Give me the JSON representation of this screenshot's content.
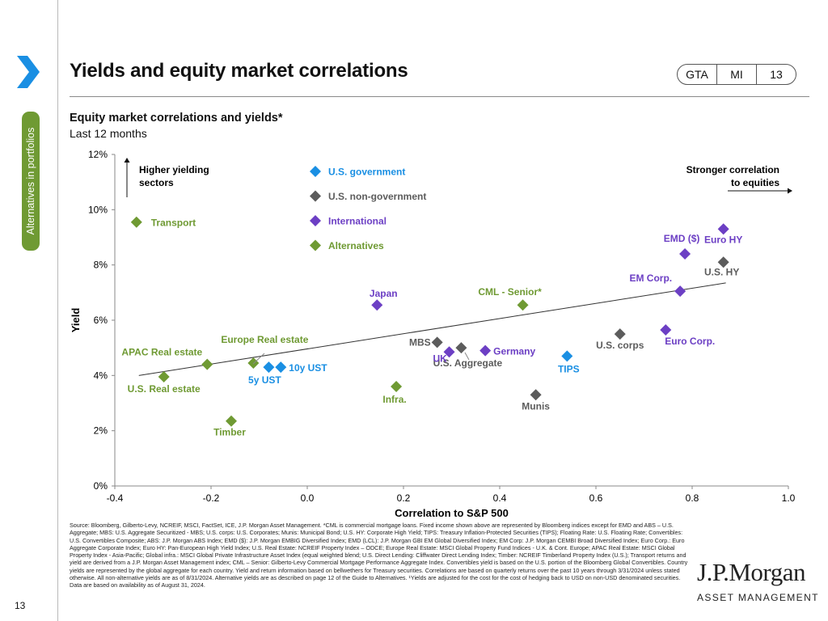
{
  "header": {
    "title": "Yields and equity market correlations",
    "tags": [
      "GTA",
      "MI",
      "13"
    ]
  },
  "sidebar": {
    "section_label": "Alternatives in portfolios",
    "page_number": "13"
  },
  "colors": {
    "accent_green": "#6f9a33",
    "chevron_blue": "#1a8fe3",
    "us_government": "#1a8fe3",
    "us_non_government": "#5c5c5c",
    "international": "#6c3fc4",
    "alternatives": "#6f9a33"
  },
  "chart_data": {
    "type": "scatter",
    "title": "Equity market correlations and yields*",
    "subtitle": "Last 12 months",
    "xlabel": "Correlation to S&P 500",
    "ylabel": "Yield",
    "xlim": [
      -0.4,
      1.0
    ],
    "ylim": [
      0,
      12
    ],
    "x_ticks": [
      "-0.4",
      "-0.2",
      "0.0",
      "0.2",
      "0.4",
      "0.6",
      "0.8",
      "1.0"
    ],
    "y_ticks": [
      "0%",
      "2%",
      "4%",
      "6%",
      "8%",
      "10%",
      "12%"
    ],
    "grid": false,
    "legend_position": "top-left",
    "annotations": {
      "higher_yielding": "Higher yielding sectors",
      "stronger_correlation": "Stronger correlation to equities"
    },
    "trendline": {
      "x": [
        -0.35,
        0.87
      ],
      "y": [
        4.0,
        7.35
      ]
    },
    "series": [
      {
        "name": "U.S. government",
        "color": "#1a8fe3",
        "points": [
          {
            "label": "5y UST",
            "x": -0.08,
            "y": 4.3
          },
          {
            "label": "10y UST",
            "x": -0.055,
            "y": 4.3
          },
          {
            "label": "TIPS",
            "x": 0.54,
            "y": 4.7
          }
        ]
      },
      {
        "name": "U.S. non-government",
        "color": "#5c5c5c",
        "points": [
          {
            "label": "MBS",
            "x": 0.27,
            "y": 5.2
          },
          {
            "label": "U.S. Aggregate",
            "x": 0.32,
            "y": 5.0
          },
          {
            "label": "Munis",
            "x": 0.475,
            "y": 3.3
          },
          {
            "label": "U.S. corps",
            "x": 0.65,
            "y": 5.5
          },
          {
            "label": "U.S. HY",
            "x": 0.865,
            "y": 8.1
          }
        ]
      },
      {
        "name": "International",
        "color": "#6c3fc4",
        "points": [
          {
            "label": "Japan",
            "x": 0.145,
            "y": 6.55
          },
          {
            "label": "UK",
            "x": 0.295,
            "y": 4.85
          },
          {
            "label": "Germany",
            "x": 0.37,
            "y": 4.9
          },
          {
            "label": "Euro Corp.",
            "x": 0.745,
            "y": 5.65
          },
          {
            "label": "EM Corp.",
            "x": 0.775,
            "y": 7.05
          },
          {
            "label": "EMD ($)",
            "x": 0.785,
            "y": 8.4
          },
          {
            "label": "Euro HY",
            "x": 0.865,
            "y": 9.3
          }
        ]
      },
      {
        "name": "Alternatives",
        "color": "#6f9a33",
        "points": [
          {
            "label": "Transport",
            "x": -0.355,
            "y": 9.55
          },
          {
            "label": "U.S. Real estate",
            "x": -0.298,
            "y": 3.95
          },
          {
            "label": "APAC Real estate",
            "x": -0.208,
            "y": 4.4
          },
          {
            "label": "Europe Real estate",
            "x": -0.112,
            "y": 4.45
          },
          {
            "label": "Timber",
            "x": -0.158,
            "y": 2.35
          },
          {
            "label": "Infra.",
            "x": 0.185,
            "y": 3.6
          },
          {
            "label": "CML - Senior*",
            "x": 0.448,
            "y": 6.55
          }
        ]
      }
    ]
  },
  "footnote": {
    "lines": [
      "Source: Bloomberg, Gilberto-Levy, NCREIF, MSCI, FactSet, ICE, J.P. Morgan Asset Management. *CML is commercial mortgage loans. Fixed income shown above are represented by Bloomberg indices except for EMD and ABS – U.S. Aggregate; MBS: U.S. Aggregate Securitized - MBS; U.S. corps: U.S. Corporates; Munis: Municipal Bond; U.S. HY: Corporate High Yield; TIPS: Treasury Inflation-Protected Securities (TIPS); Floating Rate: U.S. Floating Rate; Convertibles: U.S. Convertibles Composite; ABS: J.P. Morgan ABS Index; EMD ($): J.P. Morgan EMBIG Diversified Index; EMD (LCL): J.P. Morgan GBI EM Global Diversified Index; EM Corp: J.P. Morgan CEMBI Broad Diversified Index; Euro Corp.: Euro Aggregate Corporate Index; Euro HY: Pan-European High Yield Index; U.S. Real Estate: NCREIF Property Index – ODCE; Europe Real Estate: MSCI Global Property Fund Indices - U.K. & Cont. Europe; APAC Real Estate: MSCI Global Property Index - Asia-Pacific; Global infra.: MSCI Global Private Infrastructure Asset Index (equal weighted blend; U.S. Direct Lending: Cliffwater Direct Lending Index; Timber: NCREIF Timberland Property Index (U.S.); Transport returns and yield are derived from a J.P. Morgan Asset Management index; CML – Senior: Gilberto-Levy Commercial Mortgage Performance Aggregate Index. Convertibles yield is based on the U.S. portion of the Bloomberg Global Convertibles. Country yields are represented by the global aggregate for each country. Yield and return information based on bellwethers for Treasury securities. Correlations are based on quarterly returns over the past 10 years through 3/31/2024 unless stated otherwise. All non-alternative yields are as of 8/31/2024. Alternative yields are as described on page 12 of the Guide to Alternatives. ¹Yields are adjusted for the cost for the cost of hedging back to USD on non-USD denominated securities.",
      "Data are based on availability as of August 31, 2024."
    ]
  },
  "logo": {
    "name": "J.P.Morgan",
    "subtitle": "ASSET MANAGEMENT"
  }
}
